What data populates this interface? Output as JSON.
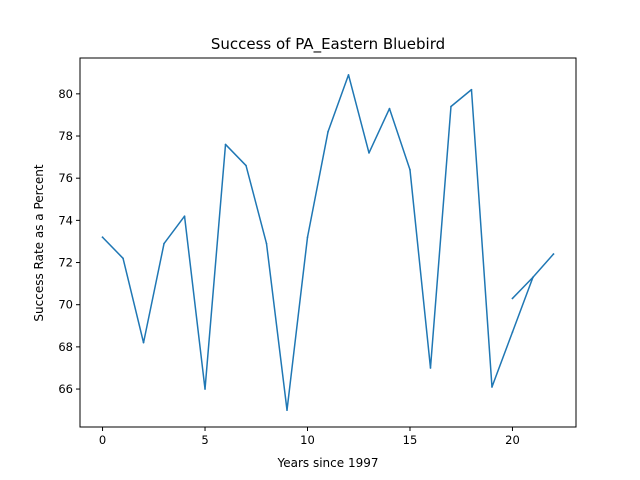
{
  "chart_data": {
    "type": "line",
    "title": "Success of PA_Eastern Bluebird",
    "xlabel": "Years since 1997",
    "ylabel": "Success Rate as a Percent",
    "xlim": [
      -1.1,
      23.1
    ],
    "ylim": [
      64.2,
      81.7
    ],
    "xticks": [
      0,
      5,
      10,
      15,
      20
    ],
    "yticks": [
      66,
      68,
      70,
      72,
      74,
      76,
      78,
      80
    ],
    "grid": false,
    "series": [
      {
        "color": "#1f77b4",
        "x": [
          0,
          1,
          2,
          3,
          4,
          5,
          6,
          7,
          8,
          9,
          10,
          11,
          12,
          13,
          14,
          15,
          16,
          17,
          18,
          19,
          20,
          21,
          22
        ],
        "y": [
          73.2,
          72.2,
          68.2,
          72.9,
          74.2,
          66.0,
          77.6,
          76.6,
          72.9,
          65.0,
          73.2,
          78.2,
          80.9,
          77.2,
          79.3,
          76.4,
          67.0,
          79.4,
          80.2,
          66.1,
          68.7,
          71.3,
          72.4
        ]
      },
      {
        "color": "#1f77b4",
        "x": [
          20,
          21
        ],
        "y": [
          70.3,
          71.3
        ]
      }
    ]
  }
}
